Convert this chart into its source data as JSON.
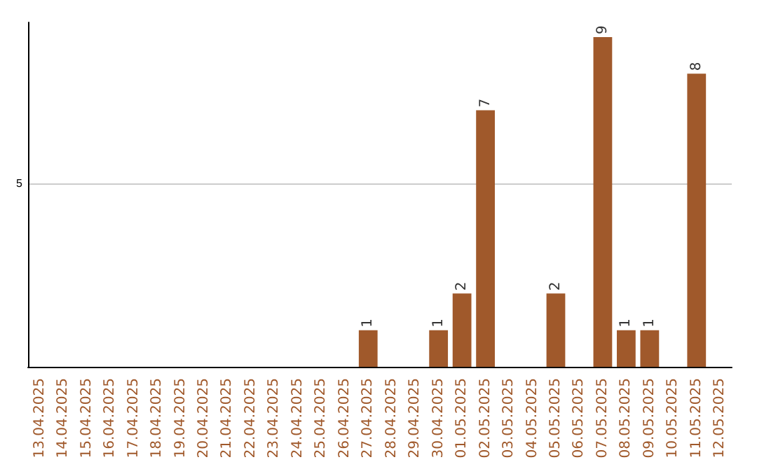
{
  "chart_data": {
    "type": "bar",
    "data_labels": true,
    "categories": [
      "13.04.2025",
      "14.04.2025",
      "15.04.2025",
      "16.04.2025",
      "17.04.2025",
      "18.04.2025",
      "19.04.2025",
      "20.04.2025",
      "21.04.2025",
      "22.04.2025",
      "23.04.2025",
      "24.04.2025",
      "25.04.2025",
      "26.04.2025",
      "27.04.2025",
      "28.04.2025",
      "29.04.2025",
      "30.04.2025",
      "01.05.2025",
      "02.05.2025",
      "03.05.2025",
      "04.05.2025",
      "05.05.2025",
      "06.05.2025",
      "07.05.2025",
      "08.05.2025",
      "09.05.2025",
      "10.05.2025",
      "11.05.2025",
      "12.05.2025"
    ],
    "values": [
      null,
      null,
      null,
      null,
      null,
      null,
      null,
      null,
      null,
      null,
      null,
      null,
      null,
      null,
      1,
      null,
      null,
      1,
      2,
      7,
      null,
      null,
      2,
      null,
      9,
      1,
      1,
      null,
      8,
      null
    ],
    "color": "#a0592b",
    "ylim": [
      0,
      9.4
    ],
    "yticks": [
      5
    ],
    "grid": "y"
  }
}
